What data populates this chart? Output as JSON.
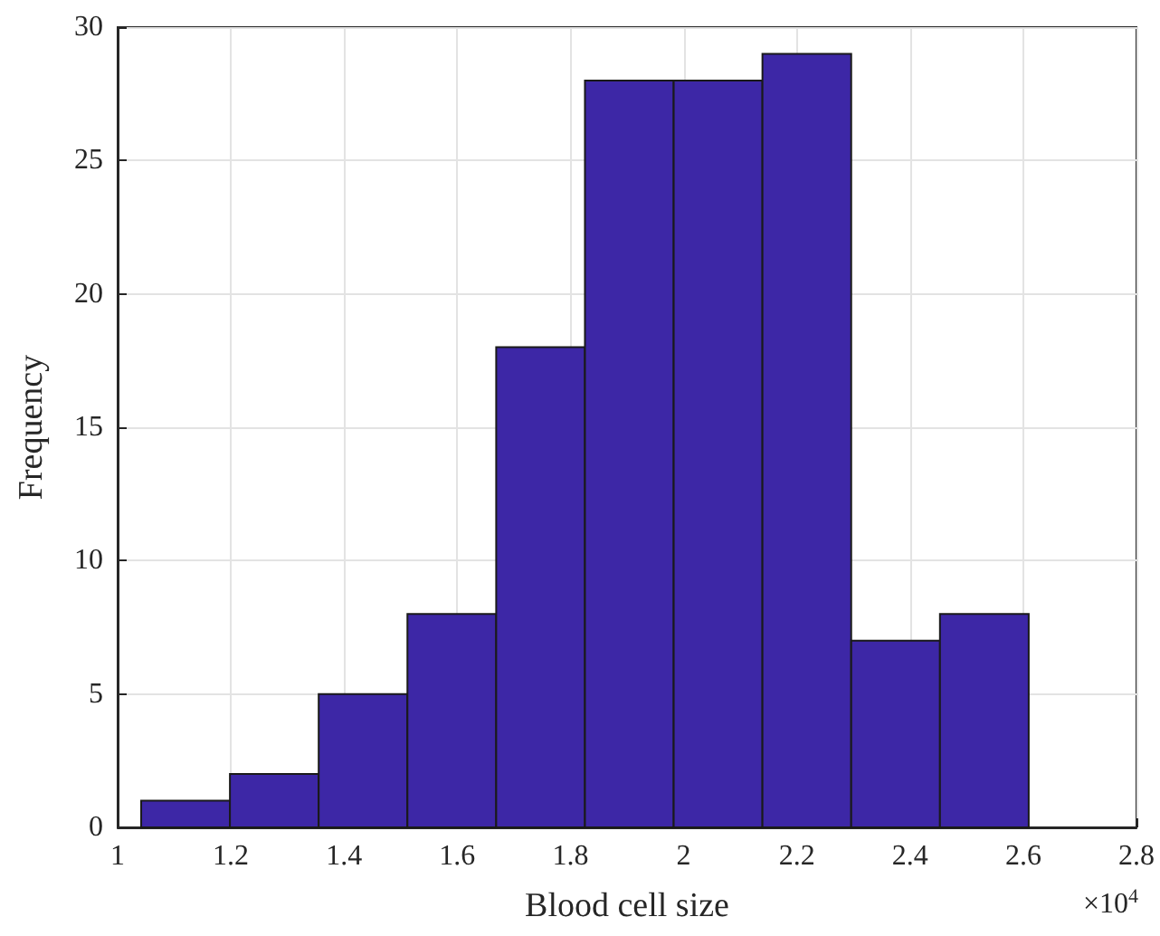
{
  "chart_data": {
    "type": "histogram",
    "xlabel": "Blood cell size",
    "ylabel": "Frequency",
    "bins": [
      1.0416,
      1.1984,
      1.3552,
      1.512,
      1.6688,
      1.8256,
      1.9824,
      2.1392,
      2.296,
      2.4528,
      2.6096
    ],
    "values": [
      1,
      2,
      5,
      8,
      18,
      28,
      28,
      29,
      7,
      8
    ],
    "color": "#3d27a6",
    "xlim": [
      1,
      2.8
    ],
    "xticks": [
      1,
      1.2,
      1.4,
      1.6,
      1.8,
      2,
      2.2,
      2.4,
      2.6,
      2.8
    ],
    "ylim": [
      0,
      30
    ],
    "yticks": [
      0,
      5,
      10,
      15,
      20,
      25,
      30
    ],
    "grid": true,
    "annotations": [
      "×10$^{4}$"
    ]
  }
}
